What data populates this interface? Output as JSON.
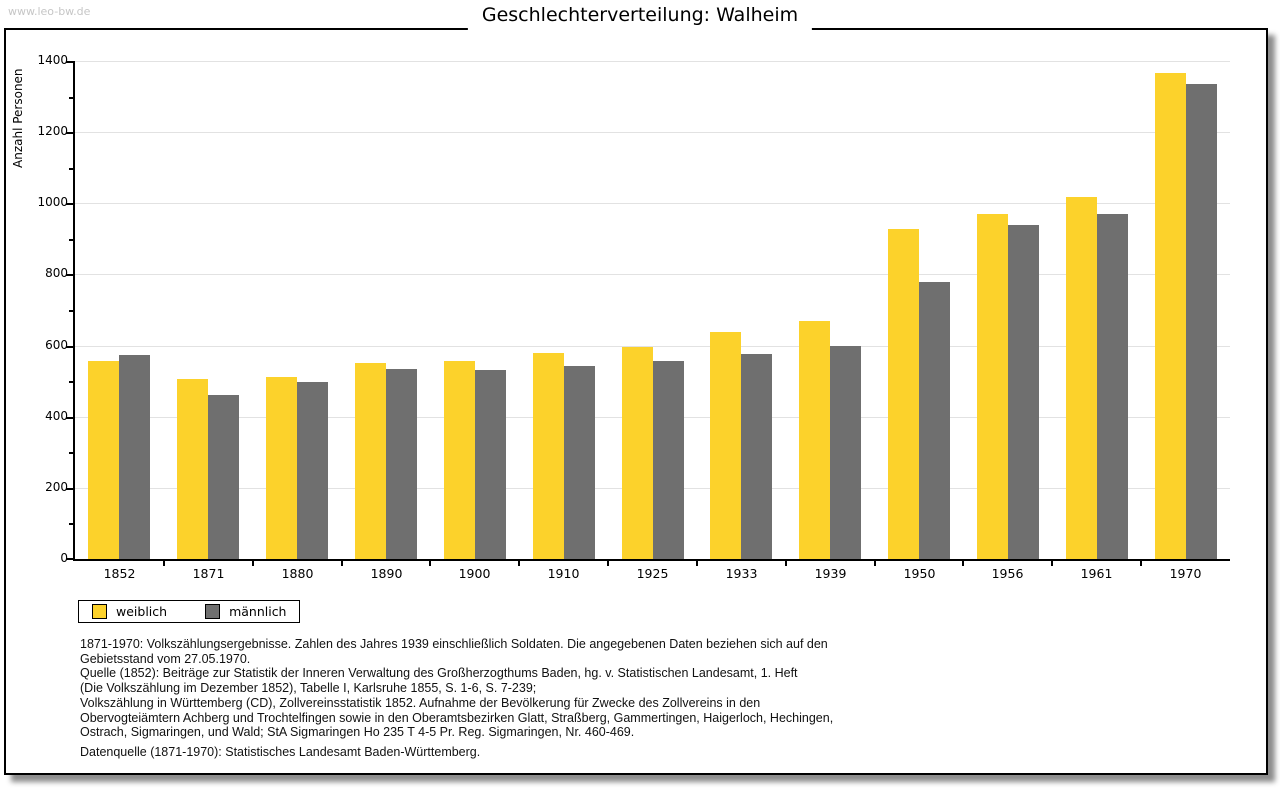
{
  "watermark": "www.leo-bw.de",
  "title": "Geschlechterverteilung: Walheim",
  "chart_data": {
    "type": "bar",
    "title": "Geschlechterverteilung: Walheim",
    "xlabel": "",
    "ylabel": "Anzahl Personen",
    "ylim": [
      0,
      1400
    ],
    "ytick_step": 200,
    "yminor_step": 100,
    "grid": true,
    "legend_position": "bottom-left",
    "categories": [
      "1852",
      "1871",
      "1880",
      "1890",
      "1900",
      "1910",
      "1925",
      "1933",
      "1939",
      "1950",
      "1956",
      "1961",
      "1970"
    ],
    "series": [
      {
        "name": "weiblich",
        "color": "#fcd22b",
        "values": [
          558,
          505,
          513,
          552,
          558,
          578,
          595,
          637,
          668,
          927,
          970,
          1018,
          1367
        ]
      },
      {
        "name": "männlich",
        "color": "#6f6f6f",
        "values": [
          573,
          461,
          497,
          533,
          530,
          542,
          557,
          575,
          598,
          778,
          939,
          969,
          1336
        ]
      }
    ]
  },
  "notes": {
    "lines": [
      "1871-1970: Volkszählungsergebnisse. Zahlen des Jahres 1939 einschließlich Soldaten. Die angegebenen Daten beziehen sich auf den",
      "Gebietsstand vom 27.05.1970.",
      "Quelle (1852): Beiträge zur Statistik der Inneren Verwaltung des Großherzogthums Baden, hg. v. Statistischen Landesamt, 1. Heft",
      "(Die Volkszählung im Dezember 1852), Tabelle I, Karlsruhe 1855, S. 1-6, S. 7-239;",
      "Volkszählung in Württemberg (CD), Zollvereinsstatistik 1852. Aufnahme der Bevölkerung für Zwecke des Zollvereins in den",
      "Obervogteiämtern Achberg und Trochtelfingen sowie in den Oberamtsbezirken Glatt, Straßberg, Gammertingen, Haigerloch, Hechingen,",
      "Ostrach, Sigmaringen, und Wald; StA Sigmaringen Ho 235 T 4-5 Pr. Reg. Sigmaringen, Nr. 460-469."
    ]
  },
  "datasource": "Datenquelle (1871-1970): Statistisches Landesamt Baden-Württemberg."
}
